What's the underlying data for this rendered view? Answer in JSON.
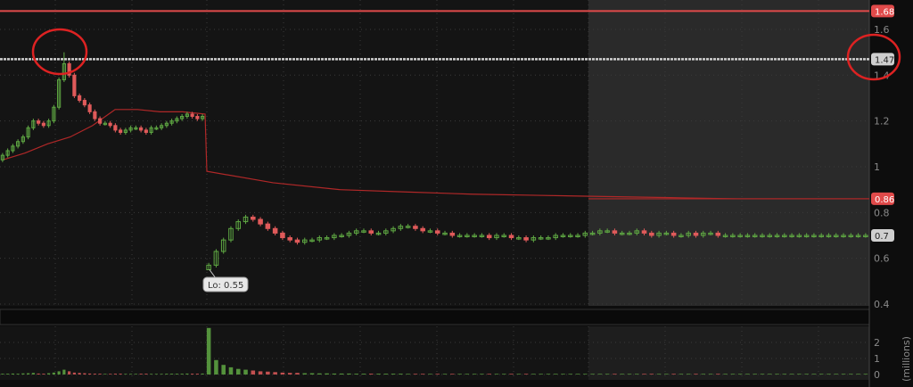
{
  "chart_data": {
    "type": "candlestick",
    "price_axis": {
      "ticks": [
        "1.6",
        "1.4",
        "1.2",
        "1",
        "0.8",
        "0.6",
        "0.4"
      ],
      "ylim": [
        0.4,
        1.6
      ]
    },
    "volume_axis": {
      "label": "(millions)",
      "ticks": [
        "2",
        "1",
        "0"
      ],
      "ylim": [
        0,
        3
      ]
    },
    "grid": true,
    "extended_hours_shaded": true,
    "session1_closes": [
      1.05,
      1.07,
      1.09,
      1.11,
      1.13,
      1.17,
      1.2,
      1.19,
      1.18,
      1.2,
      1.26,
      1.38,
      1.45,
      1.4,
      1.31,
      1.29,
      1.27,
      1.24,
      1.21,
      1.19,
      1.19,
      1.18,
      1.16,
      1.15,
      1.16,
      1.17,
      1.17,
      1.16,
      1.15,
      1.17,
      1.17,
      1.18,
      1.19,
      1.2,
      1.21,
      1.22,
      1.23,
      1.22,
      1.21,
      1.22
    ],
    "session2_closes": [
      0.57,
      0.63,
      0.68,
      0.73,
      0.76,
      0.78,
      0.77,
      0.75,
      0.73,
      0.71,
      0.69,
      0.68,
      0.67,
      0.68,
      0.68,
      0.69,
      0.69,
      0.7,
      0.7,
      0.71,
      0.72,
      0.72,
      0.71,
      0.71,
      0.72,
      0.73,
      0.74,
      0.74,
      0.73,
      0.72,
      0.72,
      0.71,
      0.71,
      0.7,
      0.7,
      0.7,
      0.7,
      0.7,
      0.69,
      0.7,
      0.7,
      0.69,
      0.69,
      0.68,
      0.69,
      0.69,
      0.69,
      0.7,
      0.7,
      0.7,
      0.7,
      0.71,
      0.71,
      0.72,
      0.72,
      0.71,
      0.71,
      0.71,
      0.72,
      0.71,
      0.7,
      0.71,
      0.71,
      0.7,
      0.7,
      0.71,
      0.7,
      0.71,
      0.71,
      0.7,
      0.7,
      0.7,
      0.7,
      0.7,
      0.7,
      0.7,
      0.7,
      0.7,
      0.7,
      0.7,
      0.7,
      0.7,
      0.7,
      0.7,
      0.7,
      0.7,
      0.7,
      0.7,
      0.7,
      0.7
    ],
    "spike_high": 1.5,
    "session1_vwap": [
      1.03,
      1.06,
      1.1,
      1.13,
      1.18,
      1.25,
      1.25,
      1.24,
      1.24,
      1.23
    ],
    "session2_vwap": [
      0.98,
      0.93,
      0.9,
      0.89,
      0.88,
      0.875,
      0.87,
      0.865,
      0.86,
      0.86,
      0.86
    ],
    "session1_volume_millions": [
      0.05,
      0.05,
      0.06,
      0.05,
      0.07,
      0.08,
      0.1,
      0.06,
      0.05,
      0.08,
      0.12,
      0.2,
      0.3,
      0.2,
      0.12,
      0.1,
      0.08,
      0.06,
      0.05,
      0.05,
      0.04,
      0.04,
      0.05,
      0.05,
      0.04,
      0.04,
      0.04,
      0.05,
      0.05,
      0.04,
      0.04,
      0.04,
      0.05,
      0.05,
      0.05,
      0.05,
      0.06,
      0.05,
      0.05,
      0.06
    ],
    "session2_volume_millions": [
      2.9,
      0.9,
      0.6,
      0.45,
      0.35,
      0.3,
      0.25,
      0.2,
      0.18,
      0.15,
      0.12,
      0.1,
      0.1,
      0.08,
      0.08,
      0.07,
      0.07,
      0.06,
      0.06,
      0.06,
      0.05,
      0.05,
      0.05,
      0.05,
      0.05,
      0.05,
      0.05,
      0.04,
      0.04,
      0.04
    ],
    "price_lines": [
      {
        "label": "1.68",
        "value": 1.68,
        "color": "#e04a4a",
        "style": "solid"
      },
      {
        "label": "1.47",
        "value": 1.47,
        "color": "#cfcfcf",
        "style": "dashed"
      },
      {
        "label": "0.86",
        "value": 0.86,
        "color": "#e04a4a",
        "style": "vwap"
      },
      {
        "label": "0.7",
        "value": 0.7,
        "color": "#bdbdbd",
        "style": "last"
      }
    ],
    "annotations": [
      {
        "text": "Lo: 0.55",
        "value": 0.55
      }
    ],
    "colors": {
      "up": "#5fa843",
      "down": "#e05a5a",
      "vwap": "#b02828",
      "background": "#141414",
      "shaded": "#2a2a2a"
    }
  }
}
